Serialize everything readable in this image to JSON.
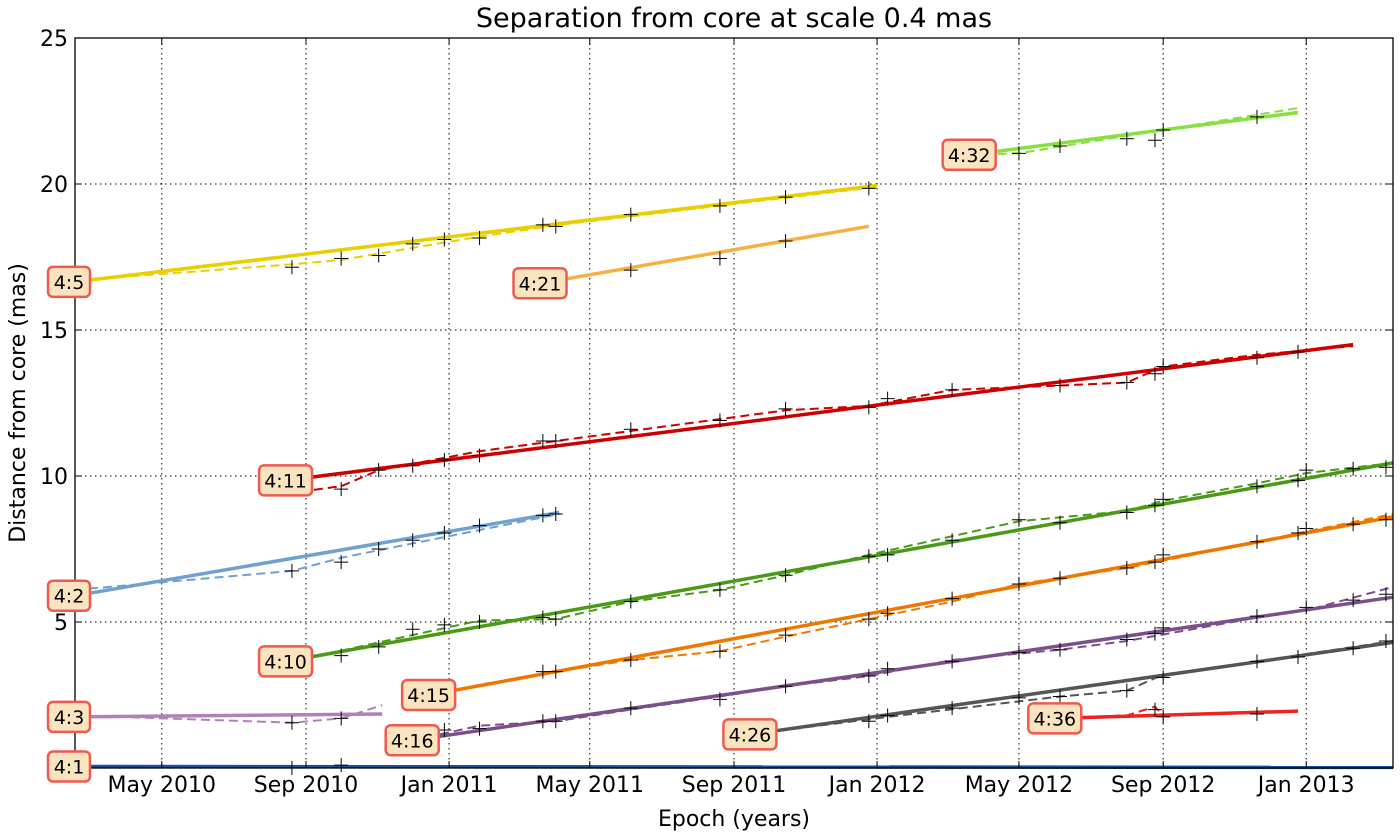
{
  "chart_data": {
    "type": "line",
    "title": "Separation from core at scale 0.4 mas",
    "xlabel": "Epoch (years)",
    "ylabel": "Distance from core (mas)",
    "xlim": [
      "2010-02-16",
      "2013-03-16"
    ],
    "ylim": [
      0,
      25
    ],
    "grid": true,
    "x_ticks": [
      {
        "date": "2010-05-01",
        "label": "May 2010"
      },
      {
        "date": "2010-09-01",
        "label": "Sep 2010"
      },
      {
        "date": "2011-01-01",
        "label": "Jan 2011"
      },
      {
        "date": "2011-05-01",
        "label": "May 2011"
      },
      {
        "date": "2011-09-01",
        "label": "Sep 2011"
      },
      {
        "date": "2012-01-01",
        "label": "Jan 2012"
      },
      {
        "date": "2012-05-01",
        "label": "May 2012"
      },
      {
        "date": "2012-09-01",
        "label": "Sep 2012"
      },
      {
        "date": "2013-01-01",
        "label": "Jan 2013"
      }
    ],
    "y_ticks": [
      {
        "value": 0,
        "label": "0"
      },
      {
        "value": 5,
        "label": "5"
      },
      {
        "value": 10,
        "label": "10"
      },
      {
        "value": 15,
        "label": "15"
      },
      {
        "value": 20,
        "label": "20"
      },
      {
        "value": 25,
        "label": "25"
      }
    ],
    "series": [
      {
        "label": "4:1",
        "color": "#1f4e9a",
        "fit": [
          [
            "2010-02-16",
            0.05
          ],
          [
            "2013-03-16",
            0.02
          ]
        ],
        "trend": [
          [
            "2010-02-16",
            0.05
          ],
          [
            "2010-09-20",
            0.05
          ],
          [
            "2011-03-20",
            0.03
          ],
          [
            "2013-03-16",
            0.02
          ]
        ],
        "points": [
          [
            "2010-08-20",
            0.0
          ],
          [
            "2010-10-01",
            0.1
          ]
        ]
      },
      {
        "label": "4:2",
        "color": "#6fa0d0",
        "fit": [
          [
            "2010-02-16",
            5.9
          ],
          [
            "2011-04-05",
            8.75
          ]
        ],
        "trend": [
          [
            "2010-02-16",
            6.1
          ],
          [
            "2010-08-20",
            6.75
          ],
          [
            "2010-10-01",
            7.2
          ],
          [
            "2011-04-05",
            8.7
          ]
        ],
        "points": [
          [
            "2010-08-20",
            6.75
          ],
          [
            "2010-10-01",
            7.05
          ],
          [
            "2010-11-02",
            7.5
          ],
          [
            "2010-12-01",
            7.8
          ],
          [
            "2010-12-28",
            8.05
          ],
          [
            "2011-01-27",
            8.3
          ],
          [
            "2011-03-22",
            8.65
          ],
          [
            "2011-04-02",
            8.7
          ]
        ]
      },
      {
        "label": "4:3",
        "color": "#b080b8",
        "fit": [
          [
            "2010-02-16",
            1.75
          ],
          [
            "2010-11-05",
            1.85
          ]
        ],
        "trend": [
          [
            "2010-02-16",
            1.8
          ],
          [
            "2010-08-20",
            1.55
          ],
          [
            "2010-10-01",
            1.7
          ],
          [
            "2010-11-05",
            2.15
          ]
        ],
        "points": [
          [
            "2010-08-20",
            1.55
          ],
          [
            "2010-10-01",
            1.7
          ]
        ]
      },
      {
        "label": "4:5",
        "color": "#e8d000",
        "fit": [
          [
            "2010-02-16",
            16.65
          ],
          [
            "2012-01-01",
            19.95
          ]
        ],
        "trend": [
          [
            "2010-02-16",
            16.7
          ],
          [
            "2010-08-20",
            17.25
          ],
          [
            "2010-10-01",
            17.4
          ],
          [
            "2011-01-27",
            18.2
          ],
          [
            "2011-04-05",
            18.6
          ],
          [
            "2012-01-01",
            19.9
          ]
        ],
        "points": [
          [
            "2010-08-20",
            17.15
          ],
          [
            "2010-10-01",
            17.45
          ],
          [
            "2010-11-02",
            17.55
          ],
          [
            "2010-12-01",
            17.95
          ],
          [
            "2010-12-28",
            18.1
          ],
          [
            "2011-01-27",
            18.15
          ],
          [
            "2011-03-22",
            18.6
          ],
          [
            "2011-04-02",
            18.55
          ],
          [
            "2011-06-05",
            18.95
          ],
          [
            "2011-08-20",
            19.25
          ],
          [
            "2011-10-15",
            19.55
          ],
          [
            "2011-12-25",
            19.85
          ]
        ]
      },
      {
        "label": "4:10",
        "color": "#4a9a18",
        "fit": [
          [
            "2010-08-15",
            3.65
          ],
          [
            "2013-03-16",
            10.45
          ]
        ],
        "trend": [
          [
            "2010-08-15",
            3.6
          ],
          [
            "2010-11-02",
            4.3
          ],
          [
            "2011-01-27",
            5.05
          ],
          [
            "2011-04-02",
            5.1
          ],
          [
            "2011-06-05",
            5.7
          ],
          [
            "2011-08-20",
            6.1
          ],
          [
            "2011-10-15",
            6.6
          ],
          [
            "2011-12-25",
            7.3
          ],
          [
            "2012-05-01",
            8.45
          ],
          [
            "2012-08-01",
            8.8
          ],
          [
            "2012-09-01",
            9.15
          ],
          [
            "2012-11-20",
            9.75
          ],
          [
            "2013-01-01",
            10.1
          ],
          [
            "2013-03-16",
            10.45
          ]
        ],
        "points": [
          [
            "2010-10-01",
            3.85
          ],
          [
            "2010-11-02",
            4.15
          ],
          [
            "2010-12-01",
            4.75
          ],
          [
            "2010-12-28",
            4.9
          ],
          [
            "2011-01-27",
            5.0
          ],
          [
            "2011-03-22",
            5.15
          ],
          [
            "2011-04-02",
            5.1
          ],
          [
            "2011-06-05",
            5.7
          ],
          [
            "2011-08-20",
            6.1
          ],
          [
            "2011-10-15",
            6.6
          ],
          [
            "2011-12-25",
            7.25
          ],
          [
            "2012-01-10",
            7.3
          ],
          [
            "2012-03-05",
            7.8
          ],
          [
            "2012-05-01",
            8.5
          ],
          [
            "2012-06-05",
            8.4
          ],
          [
            "2012-08-01",
            8.75
          ],
          [
            "2012-08-25",
            9.0
          ],
          [
            "2012-09-01",
            9.2
          ],
          [
            "2012-11-20",
            9.65
          ],
          [
            "2012-12-25",
            9.85
          ],
          [
            "2013-01-01",
            10.2
          ],
          [
            "2013-02-10",
            10.25
          ],
          [
            "2013-03-10",
            10.3
          ]
        ]
      },
      {
        "label": "4:11",
        "color": "#cc0000",
        "fit": [
          [
            "2010-08-15",
            9.85
          ],
          [
            "2013-02-10",
            14.5
          ]
        ],
        "trend": [
          [
            "2010-08-15",
            9.4
          ],
          [
            "2010-10-01",
            9.65
          ],
          [
            "2010-11-02",
            10.2
          ],
          [
            "2011-01-27",
            10.85
          ],
          [
            "2011-04-02",
            11.2
          ],
          [
            "2011-10-15",
            12.25
          ],
          [
            "2011-12-25",
            12.4
          ],
          [
            "2012-03-05",
            12.95
          ],
          [
            "2012-06-05",
            13.1
          ],
          [
            "2012-08-01",
            13.2
          ],
          [
            "2012-09-01",
            13.75
          ],
          [
            "2012-11-20",
            14.15
          ],
          [
            "2013-02-10",
            14.45
          ]
        ],
        "points": [
          [
            "2010-10-01",
            9.55
          ],
          [
            "2010-11-02",
            10.2
          ],
          [
            "2010-12-01",
            10.35
          ],
          [
            "2010-12-28",
            10.55
          ],
          [
            "2011-01-27",
            10.7
          ],
          [
            "2011-03-22",
            11.2
          ],
          [
            "2011-04-02",
            11.2
          ],
          [
            "2011-06-05",
            11.6
          ],
          [
            "2011-08-20",
            11.9
          ],
          [
            "2011-10-15",
            12.3
          ],
          [
            "2011-12-25",
            12.35
          ],
          [
            "2012-01-10",
            12.65
          ],
          [
            "2012-03-05",
            12.95
          ],
          [
            "2012-06-05",
            13.1
          ],
          [
            "2012-08-01",
            13.2
          ],
          [
            "2012-08-25",
            13.5
          ],
          [
            "2012-09-01",
            13.75
          ],
          [
            "2012-11-20",
            14.05
          ],
          [
            "2012-12-25",
            14.25
          ]
        ]
      },
      {
        "label": "4:15",
        "color": "#ee7700",
        "fit": [
          [
            "2010-12-15",
            2.5
          ],
          [
            "2013-03-16",
            8.6
          ]
        ],
        "trend": [
          [
            "2010-12-15",
            2.5
          ],
          [
            "2011-01-27",
            2.85
          ],
          [
            "2011-04-02",
            3.3
          ],
          [
            "2011-06-05",
            3.7
          ],
          [
            "2011-08-20",
            4.0
          ],
          [
            "2011-10-15",
            4.5
          ],
          [
            "2011-12-25",
            5.1
          ],
          [
            "2012-03-05",
            5.7
          ],
          [
            "2012-05-01",
            6.3
          ],
          [
            "2012-08-01",
            6.85
          ],
          [
            "2012-11-20",
            7.75
          ],
          [
            "2013-01-01",
            8.1
          ],
          [
            "2013-03-16",
            8.7
          ]
        ],
        "points": [
          [
            "2011-03-22",
            3.3
          ],
          [
            "2011-04-02",
            3.3
          ],
          [
            "2011-06-05",
            3.7
          ],
          [
            "2011-08-20",
            4.0
          ],
          [
            "2011-10-15",
            4.55
          ],
          [
            "2011-12-25",
            5.1
          ],
          [
            "2012-01-10",
            5.3
          ],
          [
            "2012-03-05",
            5.8
          ],
          [
            "2012-05-01",
            6.3
          ],
          [
            "2012-06-05",
            6.5
          ],
          [
            "2012-08-01",
            6.85
          ],
          [
            "2012-08-25",
            7.05
          ],
          [
            "2012-09-01",
            7.3
          ],
          [
            "2012-11-20",
            7.75
          ],
          [
            "2012-12-25",
            8.05
          ],
          [
            "2013-01-01",
            8.2
          ],
          [
            "2013-02-10",
            8.35
          ],
          [
            "2013-03-10",
            8.5
          ]
        ]
      },
      {
        "label": "4:16",
        "color": "#7a4f8a",
        "fit": [
          [
            "2010-12-01",
            0.95
          ],
          [
            "2013-03-16",
            5.85
          ]
        ],
        "trend": [
          [
            "2010-12-01",
            0.95
          ],
          [
            "2011-01-27",
            1.45
          ],
          [
            "2011-04-02",
            1.6
          ],
          [
            "2011-06-05",
            2.0
          ],
          [
            "2011-08-20",
            2.45
          ],
          [
            "2011-10-15",
            2.8
          ],
          [
            "2011-12-25",
            3.15
          ],
          [
            "2012-03-05",
            3.7
          ],
          [
            "2012-06-05",
            4.05
          ],
          [
            "2012-08-01",
            4.35
          ],
          [
            "2012-11-20",
            5.15
          ],
          [
            "2013-01-01",
            5.4
          ],
          [
            "2013-03-16",
            6.2
          ]
        ],
        "points": [
          [
            "2010-12-28",
            1.3
          ],
          [
            "2011-01-27",
            1.35
          ],
          [
            "2011-03-22",
            1.6
          ],
          [
            "2011-04-02",
            1.6
          ],
          [
            "2011-06-05",
            2.05
          ],
          [
            "2011-08-20",
            2.35
          ],
          [
            "2011-10-15",
            2.8
          ],
          [
            "2011-12-25",
            3.15
          ],
          [
            "2012-01-10",
            3.4
          ],
          [
            "2012-03-05",
            3.65
          ],
          [
            "2012-05-01",
            3.95
          ],
          [
            "2012-06-05",
            4.05
          ],
          [
            "2012-08-01",
            4.4
          ],
          [
            "2012-08-25",
            4.6
          ],
          [
            "2012-09-01",
            4.8
          ],
          [
            "2012-11-20",
            5.2
          ],
          [
            "2013-01-01",
            5.5
          ],
          [
            "2013-02-10",
            5.75
          ],
          [
            "2013-03-10",
            5.95
          ]
        ]
      },
      {
        "label": "4:21",
        "color": "#f7b040",
        "fit": [
          [
            "2011-03-20",
            16.6
          ],
          [
            "2011-12-25",
            18.55
          ]
        ],
        "trend": [
          [
            "2011-03-20",
            16.6
          ],
          [
            "2011-12-25",
            18.55
          ]
        ],
        "points": [
          [
            "2011-06-05",
            17.05
          ],
          [
            "2011-08-20",
            17.45
          ],
          [
            "2011-10-15",
            18.05
          ]
        ]
      },
      {
        "label": "4:26",
        "color": "#555555",
        "fit": [
          [
            "2011-09-15",
            1.15
          ],
          [
            "2013-03-16",
            4.3
          ]
        ],
        "trend": [
          [
            "2011-09-15",
            1.15
          ],
          [
            "2012-01-10",
            1.75
          ],
          [
            "2012-06-05",
            2.45
          ],
          [
            "2012-08-01",
            2.65
          ],
          [
            "2012-09-01",
            3.2
          ],
          [
            "2012-11-20",
            3.65
          ],
          [
            "2013-03-16",
            4.35
          ]
        ],
        "points": [
          [
            "2011-12-25",
            1.6
          ],
          [
            "2012-01-10",
            1.8
          ],
          [
            "2012-03-05",
            2.05
          ],
          [
            "2012-05-01",
            2.4
          ],
          [
            "2012-06-05",
            2.45
          ],
          [
            "2012-08-01",
            2.65
          ],
          [
            "2012-09-01",
            3.1
          ],
          [
            "2012-11-20",
            3.65
          ],
          [
            "2012-12-25",
            3.8
          ],
          [
            "2013-02-10",
            4.1
          ],
          [
            "2013-03-10",
            4.35
          ]
        ]
      },
      {
        "label": "4:32",
        "color": "#88e040",
        "fit": [
          [
            "2012-03-20",
            21.0
          ],
          [
            "2012-12-25",
            22.45
          ]
        ],
        "trend": [
          [
            "2012-03-20",
            21.0
          ],
          [
            "2012-05-01",
            21.05
          ],
          [
            "2012-12-25",
            22.6
          ]
        ],
        "points": [
          [
            "2012-05-01",
            21.05
          ],
          [
            "2012-06-05",
            21.3
          ],
          [
            "2012-08-01",
            21.55
          ],
          [
            "2012-08-25",
            21.5
          ],
          [
            "2012-09-01",
            21.85
          ],
          [
            "2012-11-20",
            22.3
          ]
        ]
      },
      {
        "label": "4:36",
        "color": "#ee2222",
        "fit": [
          [
            "2012-06-01",
            1.7
          ],
          [
            "2012-12-25",
            1.95
          ]
        ],
        "trend": [
          [
            "2012-06-01",
            1.7
          ],
          [
            "2012-08-01",
            1.8
          ],
          [
            "2012-08-25",
            2.1
          ],
          [
            "2012-09-01",
            1.8
          ],
          [
            "2012-12-25",
            1.95
          ]
        ],
        "points": [
          [
            "2012-08-25",
            2.0
          ],
          [
            "2012-09-01",
            1.75
          ],
          [
            "2012-11-20",
            1.85
          ]
        ]
      }
    ]
  }
}
